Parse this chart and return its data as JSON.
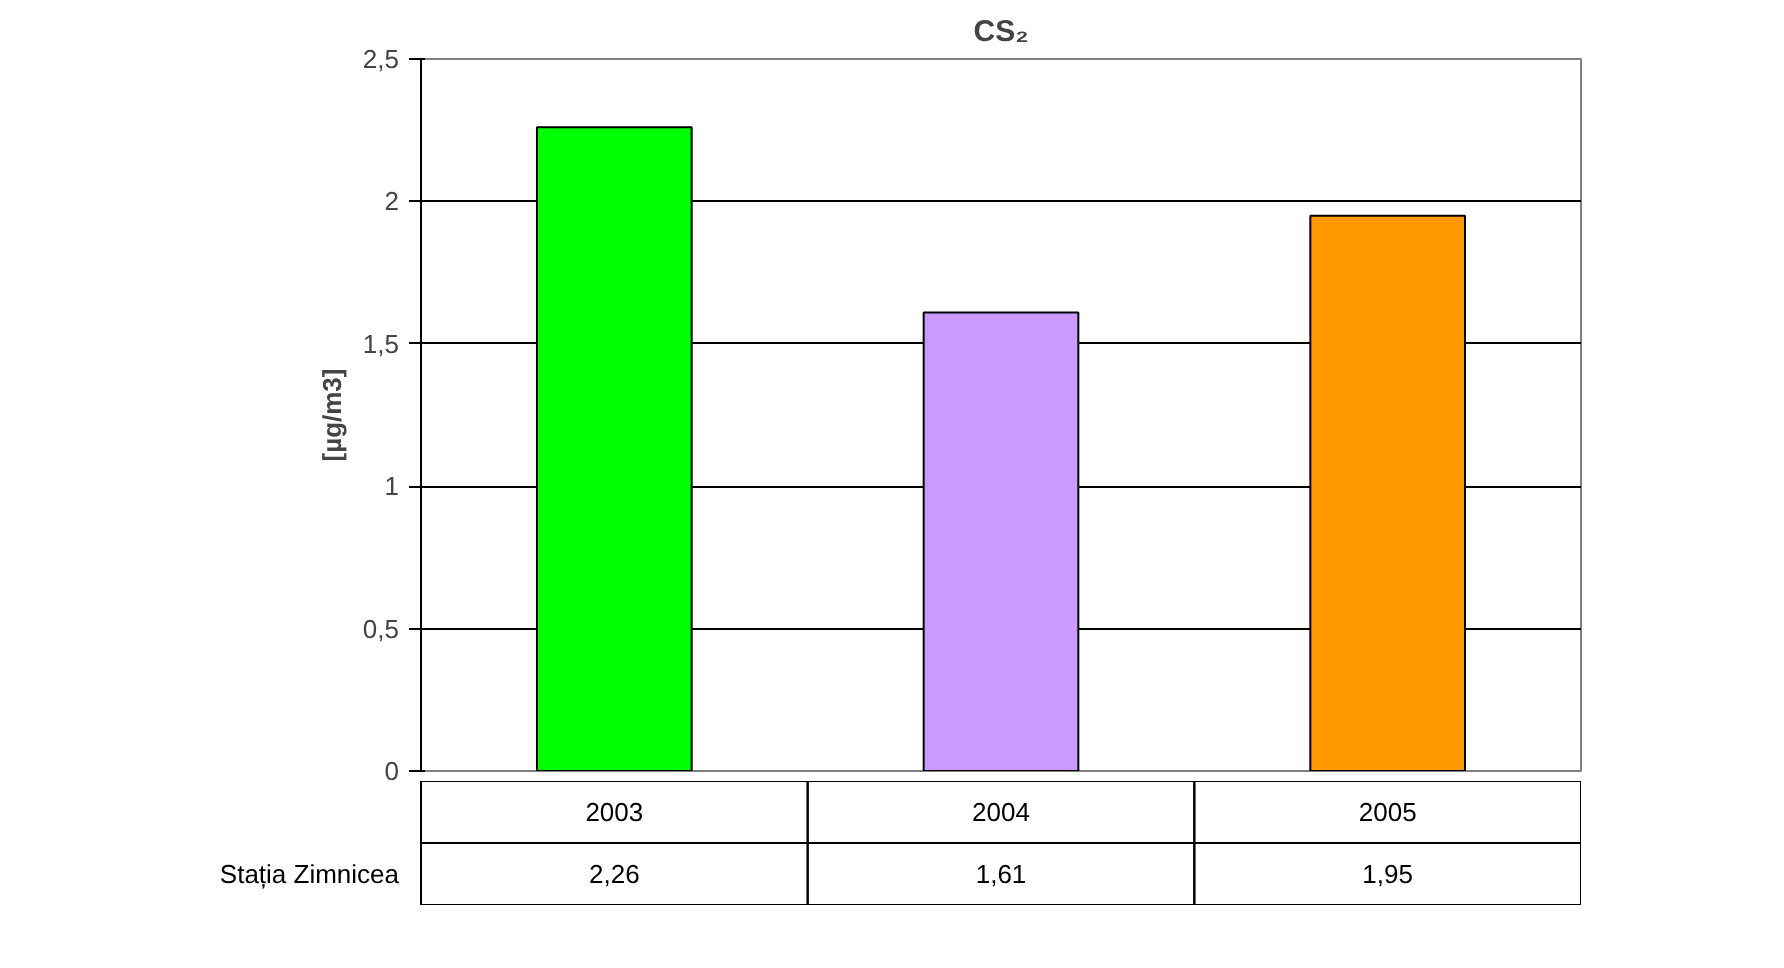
{
  "chart_data": {
    "type": "bar",
    "title": "CS₂",
    "ylabel": "[µg/m3]",
    "categories": [
      "2003",
      "2004",
      "2005"
    ],
    "series": [
      {
        "name": "Stația Zimnicea",
        "colors": [
          "#00ff00",
          "#cc99ff",
          "#ff9900"
        ],
        "values": [
          2.26,
          1.61,
          1.95
        ],
        "value_labels": [
          "2,26",
          "1,61",
          "1,95"
        ]
      }
    ],
    "ylim": [
      0,
      2.5
    ],
    "yticks": [
      0,
      {
        "value": 0.5,
        "label": "0,5"
      },
      1,
      {
        "value": 1.5,
        "label": "1,5"
      },
      2,
      {
        "value": 2.5,
        "label": "2,5"
      }
    ],
    "grid": "y"
  }
}
